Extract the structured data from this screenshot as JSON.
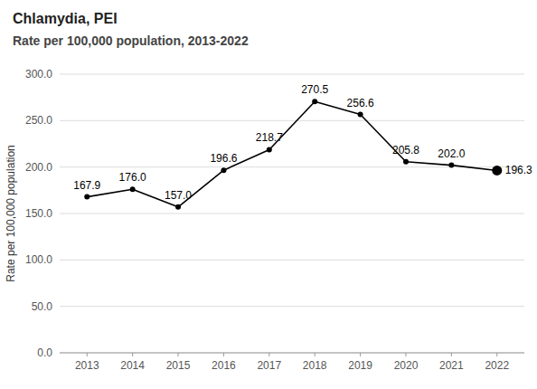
{
  "chart_data": {
    "type": "line",
    "title": "Chlamydia, PEI",
    "subtitle": "Rate per 100,000 population, 2013-2022",
    "y_label": "Rate per 100,000 population",
    "x": [
      2013,
      2014,
      2015,
      2016,
      2017,
      2018,
      2019,
      2020,
      2021,
      2022
    ],
    "values": [
      167.9,
      176.0,
      157.0,
      196.6,
      218.7,
      270.5,
      256.6,
      205.8,
      202.0,
      196.3
    ],
    "value_labels": [
      "167.9",
      "176.0",
      "157.0",
      "196.6",
      "218.7",
      "270.5",
      "256.6",
      "205.8",
      "202.0",
      "196.3"
    ],
    "data_labels": true,
    "color": "#000000",
    "marker": "circle",
    "xlim": [
      2012.4,
      2022.6
    ],
    "xticks": [
      2013,
      2014,
      2015,
      2016,
      2017,
      2018,
      2019,
      2020,
      2021,
      2022
    ],
    "ylim": [
      0,
      300
    ],
    "yticks": [
      {
        "value": 0,
        "label": "0.0"
      },
      {
        "value": 50,
        "label": "50.0"
      },
      {
        "value": 100,
        "label": "100.0"
      },
      {
        "value": 150,
        "label": "150.0"
      },
      {
        "value": 200,
        "label": "200.0"
      },
      {
        "value": 250,
        "label": "250.0"
      },
      {
        "value": 300,
        "label": "300.0"
      }
    ],
    "grid": true
  }
}
